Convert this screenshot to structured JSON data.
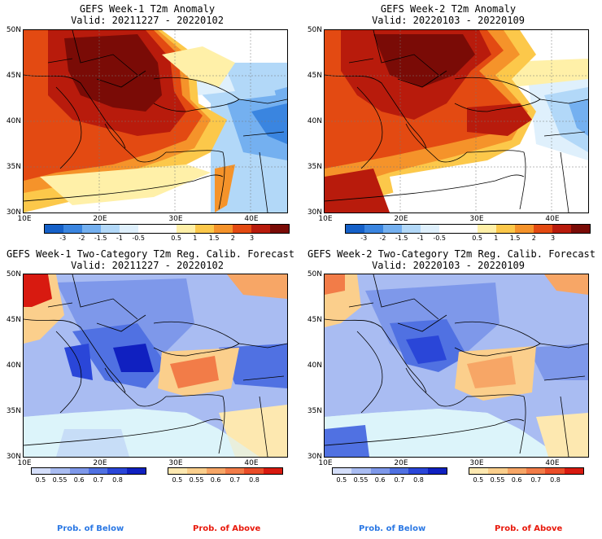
{
  "panels": {
    "w1anom": {
      "title": "GEFS Week-1 T2m Anomaly",
      "valid": "Valid: 20211227 - 20220102"
    },
    "w2anom": {
      "title": "GEFS Week-2 T2m Anomaly",
      "valid": "Valid: 20220103 - 20220109"
    },
    "w1prob": {
      "title": "GEFS Week-1 Two-Category T2m Reg. Calib. Forecast",
      "valid": "Valid: 20211227 - 20220102"
    },
    "w2prob": {
      "title": "GEFS Week-2 Two-Category T2m Reg. Calib. Forecast",
      "valid": "Valid: 20220103 - 20220109"
    }
  },
  "lat_labels": [
    "50N",
    "45N",
    "40N",
    "35N",
    "30N"
  ],
  "lon_labels": [
    "10E",
    "20E",
    "30E",
    "40E"
  ],
  "anomaly_colorbar": {
    "labels": [
      "-3",
      "-2",
      "-1.5",
      "-1",
      "-0.5",
      "0.5",
      "1",
      "1.5",
      "2",
      "3"
    ],
    "colors": [
      "#1560c8",
      "#3a85e0",
      "#74b0f0",
      "#b2d8f8",
      "#dff0fc",
      "#ffffff",
      "#ffffff",
      "#fff0a8",
      "#fcc84a",
      "#f5932a",
      "#e34a12",
      "#b81b0c",
      "#7a0b06"
    ]
  },
  "below_colorbar": {
    "labels": [
      "0.5",
      "0.55",
      "0.6",
      "0.7",
      "0.8"
    ],
    "colors": [
      "#d4defa",
      "#a9bcf2",
      "#7e98ea",
      "#5071e2",
      "#2a46d8",
      "#1020c0"
    ]
  },
  "above_colorbar": {
    "labels": [
      "0.5",
      "0.55",
      "0.6",
      "0.7",
      "0.8"
    ],
    "colors": [
      "#fde8b0",
      "#fbcf8c",
      "#f7a666",
      "#f27c48",
      "#ea4d28",
      "#d81a10"
    ]
  },
  "prob_labels": {
    "below": "Prob. of Below",
    "above": "Prob. of Above"
  },
  "colors": {
    "below_label": "#2b78e4",
    "above_label": "#e8190c",
    "sea_prob": "#dcf4fa"
  }
}
